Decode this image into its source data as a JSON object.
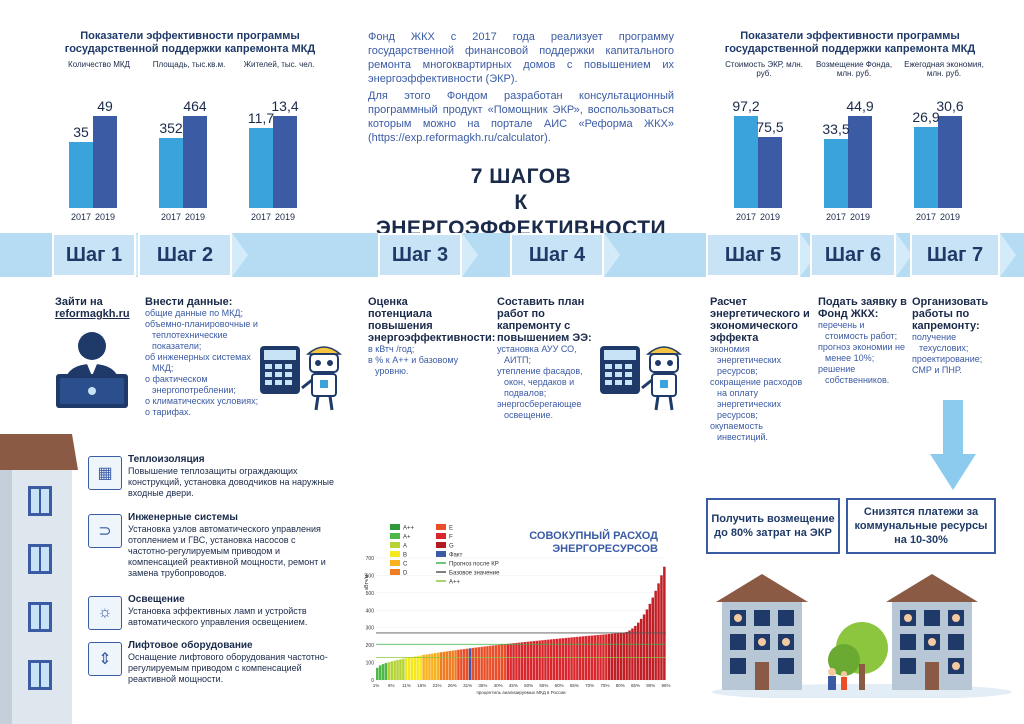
{
  "left_stats": {
    "header": "Показатели эффективности программы государственной поддержки капремонта МКД",
    "groups": [
      {
        "label": "Количество МКД",
        "v2017": "35",
        "v2019": "49",
        "h17": 35,
        "h19": 49
      },
      {
        "label": "Площадь, тыс.кв.м.",
        "v2017": "352",
        "v2019": "464",
        "h17": 352,
        "h19": 464
      },
      {
        "label": "Жителей, тыс. чел.",
        "v2017": "11,7",
        "v2019": "13,4",
        "h17": 11.7,
        "h19": 13.4
      }
    ],
    "year_a": "2017",
    "year_b": "2019"
  },
  "right_stats": {
    "header": "Показатели эффективности программы государственной поддержки капремонта МКД",
    "groups": [
      {
        "label": "Стоимость ЭКР, млн. руб.",
        "v2017": "97,2",
        "v2019": "75,5",
        "h17": 97.2,
        "h19": 75.5
      },
      {
        "label": "Возмещение Фонда, млн. руб.",
        "v2017": "33,5",
        "v2019": "44,9",
        "h17": 33.5,
        "h19": 44.9
      },
      {
        "label": "Ежегодная экономия, млн. руб.",
        "v2017": "26,9",
        "v2019": "30,6",
        "h17": 26.9,
        "h19": 30.6
      }
    ],
    "year_a": "2017",
    "year_b": "2019"
  },
  "intro": {
    "p1": "Фонд ЖКХ с 2017 года реализует программу государственной финансовой поддержки капитального ремонта многоквартирных домов с повышением их энергоэффективности (ЭКР).",
    "p2": "Для этого Фондом разработан консультационный программный продукт «Помощник ЭКР», воспользоваться которым можно на портале АИС «Реформа ЖКХ» (https://exp.reformagkh.ru/calculator).",
    "title_line1": "7 ШАГОВ",
    "title_line2": "К ЭНЕРГОЭФФЕКТИВНОСТИ"
  },
  "steps": [
    {
      "label": "Шаг 1"
    },
    {
      "label": "Шаг 2"
    },
    {
      "label": "Шаг 3"
    },
    {
      "label": "Шаг 4"
    },
    {
      "label": "Шаг 5"
    },
    {
      "label": "Шаг 6"
    },
    {
      "label": "Шаг 7"
    }
  ],
  "step_details": {
    "s1": {
      "title": "Зайти на",
      "link": "reformagkh.ru"
    },
    "s2": {
      "title": "Внести данные:",
      "items": [
        "общие данные по МКД;",
        "объемно-планировочные и теплотехнические показатели;",
        "об инженерных системах МКД;",
        "о фактическом энергопотреблении;",
        "о климатических условиях;",
        "о тарифах."
      ]
    },
    "s3": {
      "title": "Оценка потенциала повышения энергоэффективности:",
      "items": [
        "в кВтч /год;",
        "в % к А++ и базовому уровню."
      ]
    },
    "s4": {
      "title": "Составить план работ по капремонту с повышением ЭЭ:",
      "items": [
        "установка АУУ СО, АИТП;",
        "утепление фасадов, окон, чердаков и подвалов;",
        "энергосберегающее освещение."
      ]
    },
    "s5": {
      "title": "Расчет энергетического и экономического эффекта",
      "items": [
        "экономия энергетических ресурсов;",
        "сокращение расходов на оплату энергетических ресурсов;",
        "окупаемость инвестиций."
      ]
    },
    "s6": {
      "title": "Подать заявку в Фонд ЖКХ:",
      "items": [
        "перечень и стоимость работ;",
        "прогноз экономии не менее 10%;",
        "решение собственников."
      ]
    },
    "s7": {
      "title": "Организовать работы по капремонту:",
      "items": [
        "получение техуслових;",
        "проектирование;",
        "СМР и ПНР."
      ]
    }
  },
  "measures": [
    {
      "icon": "brick-wall-icon",
      "glyph": "▦",
      "title": "Теплоизоляция",
      "text": "Повышение теплозащиты ограждающих конструкций, установка доводчиков на наружные входные двери."
    },
    {
      "icon": "pipe-icon",
      "glyph": "⊃",
      "title": "Инженерные системы",
      "text": "Установка узлов автоматического управления отоплением и ГВС, установка насосов с частотно-регулируемым приводом и компенсацией реактивной мощности, ремонт и замена трубопроводов."
    },
    {
      "icon": "lamp-icon",
      "glyph": "☼",
      "title": "Освещение",
      "text": "Установка эффективных ламп и устройств автоматического управления освещением."
    },
    {
      "icon": "elevator-icon",
      "glyph": "⇕",
      "title": "Лифтовое оборудование",
      "text": "Оснащение лифтового оборудования частотно-регулируемым приводом с компенсацией реактивной мощности."
    }
  ],
  "benefits": {
    "b1": "Получить возмещение до 80% затрат на ЭКР",
    "b2": "Снизятся платежи за коммунальные ресурсы на 10-30%"
  },
  "colors": {
    "accent_light": "#3ba3dc",
    "accent_dark": "#3b5ba5",
    "band": "#b6dcf3",
    "step": "#c7e3f5"
  },
  "chart_data": {
    "type": "bar",
    "title": "СОВОКУПНЫЙ РАСХОД ЭНЕРГОРЕСУРСОВ",
    "ylabel": "кВтч/м²",
    "xlabel": "процентиль анализируемых МКД в России",
    "ylim": [
      0,
      700
    ],
    "yticks": [
      "0",
      "100",
      "200",
      "300",
      "400",
      "500",
      "600",
      "700"
    ],
    "xticks": [
      "1%",
      "6%",
      "11%",
      "16%",
      "21%",
      "26%",
      "31%",
      "35%",
      "40%",
      "45%",
      "50%",
      "55%",
      "60%",
      "65%",
      "70%",
      "75%",
      "80%",
      "85%",
      "90%",
      "96%"
    ],
    "n_bars": 100,
    "value_start": 70,
    "value_mid": 270,
    "value_end": 650,
    "base_level": 270,
    "forecast_level": 205,
    "app_level": 130,
    "legend": [
      {
        "label": "A++",
        "color": "#2e9a3a"
      },
      {
        "label": "A+",
        "color": "#4db848"
      },
      {
        "label": "A",
        "color": "#b5d334"
      },
      {
        "label": "B",
        "color": "#f6e81e"
      },
      {
        "label": "C",
        "color": "#f7b11d"
      },
      {
        "label": "D",
        "color": "#ef7c22"
      },
      {
        "label": "E",
        "color": "#e84e27"
      },
      {
        "label": "F",
        "color": "#d9262c"
      },
      {
        "label": "G",
        "color": "#b31b22"
      },
      {
        "label": "Факт",
        "color": "#3b5ba5"
      },
      {
        "label": "Прогноз после КР",
        "color": "#3ab54a"
      },
      {
        "label": "Базовое значение",
        "color": "#555555"
      },
      {
        "label": "A++",
        "color": "#8cc63f"
      }
    ]
  }
}
